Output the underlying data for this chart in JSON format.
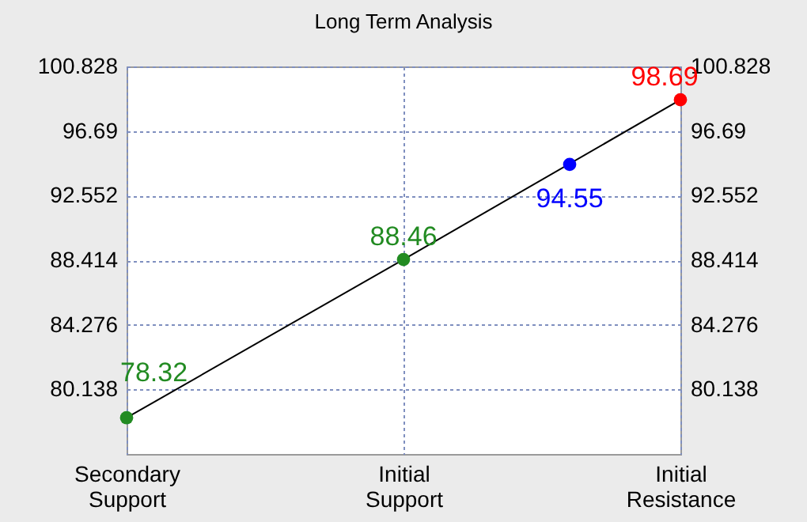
{
  "chart_data": {
    "type": "line",
    "title": "Long Term Analysis",
    "categories": [
      "Secondary Support",
      null,
      null,
      null,
      null,
      "Initial Support",
      null,
      null,
      null,
      null,
      "Initial Resistance"
    ],
    "ylim": [
      76,
      100.828
    ],
    "yticks": [
      80.138,
      84.276,
      88.414,
      92.552,
      96.69,
      100.828
    ],
    "y2lim": [
      76,
      100.828
    ],
    "y2ticks": [
      80.138,
      84.276,
      88.414,
      92.552,
      96.69,
      100.828
    ],
    "grid": true,
    "series": [
      {
        "color": "#000000",
        "x": [
          "Secondary Support",
          "Initial Support",
          "Initial Resistance"
        ],
        "values": [
          78.32,
          88.46,
          98.69
        ]
      },
      {
        "type": "scatter",
        "marker": "circle",
        "axis": "y2",
        "data_labels": true,
        "values": [
          78.32,
          null,
          null,
          null,
          null,
          88.46,
          null,
          null,
          94.55,
          null,
          98.69
        ],
        "colors": [
          "#228b22",
          null,
          null,
          null,
          null,
          "#228b22",
          null,
          null,
          "#0000ff",
          null,
          "#ff0000"
        ]
      }
    ]
  }
}
